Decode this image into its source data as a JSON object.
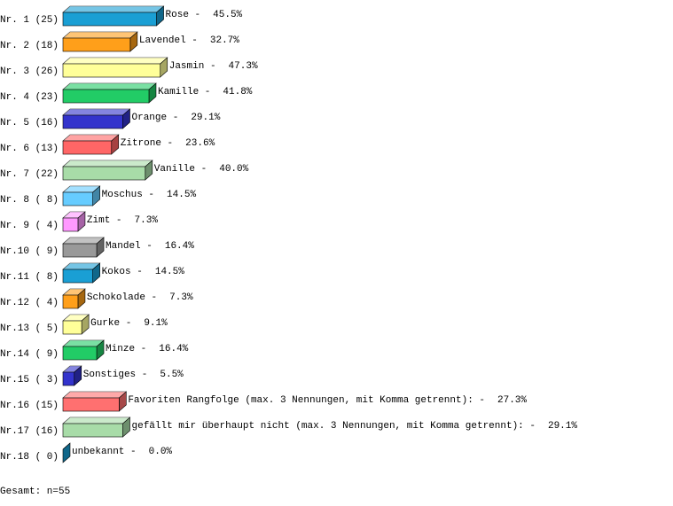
{
  "chart_data": {
    "type": "bar3d",
    "categories": [
      "Nr. 1 (25)",
      "Nr. 2 (18)",
      "Nr. 3 (26)",
      "Nr. 4 (23)",
      "Nr. 5 (16)",
      "Nr. 6 (13)",
      "Nr. 7 (22)",
      "Nr. 8 ( 8)",
      "Nr. 9 ( 4)",
      "Nr.10 ( 9)",
      "Nr.11 ( 8)",
      "Nr.12 ( 4)",
      "Nr.13 ( 5)",
      "Nr.14 ( 9)",
      "Nr.15 ( 3)",
      "Nr.16 (15)",
      "Nr.17 (16)",
      "Nr.18 ( 0)"
    ],
    "names": [
      "Rose -",
      "Lavendel -",
      "Jasmin -",
      "Kamille -",
      "Orange -",
      "Zitrone -",
      "Vanille -",
      "Moschus -",
      "Zimt -",
      "Mandel -",
      "Kokos -",
      "Schokolade -",
      "Gurke -",
      "Minze -",
      "Sonstiges -",
      "Favoriten Rangfolge (max. 3 Nennungen, mit Komma getrennt): -",
      "gefällt mir überhaupt nicht (max. 3 Nennungen, mit Komma getrennt): -",
      "unbekannt -"
    ],
    "values": [
      45.5,
      32.7,
      47.3,
      41.8,
      29.1,
      23.6,
      40.0,
      14.5,
      7.3,
      16.4,
      14.5,
      7.3,
      9.1,
      16.4,
      5.5,
      27.3,
      29.1,
      0.0
    ],
    "value_labels": [
      "45.5%",
      "32.7%",
      "47.3%",
      "41.8%",
      "29.1%",
      "23.6%",
      "40.0%",
      "14.5%",
      "7.3%",
      "16.4%",
      "14.5%",
      "7.3%",
      "9.1%",
      "16.4%",
      "5.5%",
      "27.3%",
      "29.1%",
      "0.0%"
    ],
    "colors": [
      "#1a9fd4",
      "#ff9f1a",
      "#ffff99",
      "#22cc66",
      "#3333cc",
      "#ff6666",
      "#a8dca8",
      "#66ccff",
      "#ff99ff",
      "#999999",
      "#1a9fd4",
      "#ff9f1a",
      "#ffff99",
      "#22cc66",
      "#3333cc",
      "#ff7070",
      "#a8dca8",
      "#1a9fd4"
    ],
    "footer": "Gesamt: n=55"
  }
}
